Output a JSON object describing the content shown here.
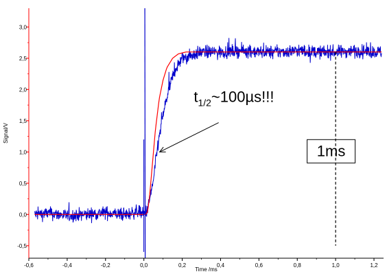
{
  "chart_data": {
    "type": "line",
    "title": "",
    "xlabel": "Time /ms",
    "ylabel": "Signal/V",
    "xlim": [
      -0.6,
      1.25
    ],
    "ylim": [
      -0.7,
      3.3
    ],
    "grid": false,
    "x_ticks": [
      -0.6,
      -0.4,
      -0.2,
      0.0,
      0.2,
      0.4,
      0.6,
      0.8,
      1.0,
      1.2
    ],
    "x_tick_labels": [
      "-0,6",
      "-0,4",
      "-0,2",
      "0,0",
      "0,2",
      "0,4",
      "0,6",
      "0,8",
      "1,0",
      "1,2"
    ],
    "y_ticks": [
      -0.5,
      0.0,
      0.5,
      1.0,
      1.5,
      2.0,
      2.5,
      3.0
    ],
    "y_tick_labels": [
      "-0,5",
      "0,0",
      "0,5",
      "1,0",
      "1,5",
      "2,0",
      "2,5",
      "3,0"
    ],
    "series": [
      {
        "color": "#0000cc",
        "style": "noisy",
        "x": [
          -0.57,
          -0.5,
          -0.4,
          -0.3,
          -0.2,
          -0.1,
          -0.03,
          0.0,
          0.02,
          0.05,
          0.07,
          0.1,
          0.13,
          0.16,
          0.2,
          0.25,
          0.3,
          0.4,
          0.5,
          0.6,
          0.7,
          0.8,
          0.9,
          1.0,
          1.1,
          1.2,
          1.24
        ],
        "y": [
          0.0,
          0.02,
          -0.02,
          0.0,
          0.03,
          -0.01,
          0.05,
          0.0,
          0.08,
          0.55,
          1.05,
          1.6,
          2.0,
          2.3,
          2.5,
          2.55,
          2.6,
          2.6,
          2.62,
          2.6,
          2.6,
          2.62,
          2.6,
          2.6,
          2.62,
          2.6,
          2.6
        ],
        "noise": 0.1
      },
      {
        "color": "#ff0000",
        "style": "fit",
        "x": [
          -0.57,
          -0.3,
          0.0,
          0.01,
          0.02,
          0.03,
          0.04,
          0.05,
          0.06,
          0.08,
          0.1,
          0.12,
          0.15,
          0.18,
          0.22,
          0.3,
          0.5,
          0.8,
          1.24
        ],
        "y": [
          0.0,
          0.0,
          0.0,
          0.0,
          0.05,
          0.3,
          0.65,
          1.0,
          1.35,
          1.85,
          2.15,
          2.35,
          2.5,
          2.57,
          2.6,
          2.6,
          2.6,
          2.6,
          2.6
        ]
      }
    ],
    "spike": {
      "x": 0.005,
      "y_high": 3.3,
      "y_low": -0.7
    },
    "annotations": [
      {
        "kind": "arrow-label",
        "text_main": "t",
        "text_sub": "1/2",
        "text_rest": "~100µs!!!",
        "text_x": 0.26,
        "text_y": 1.8,
        "arrow_to_x": 0.075,
        "arrow_to_y": 1.0
      },
      {
        "kind": "boxed-label",
        "text": "1ms",
        "x": 0.93,
        "y": 1.0
      },
      {
        "kind": "dashed-vline",
        "x": 1.0,
        "y_from": -0.5,
        "y_to": 2.6
      }
    ],
    "colors": {
      "axis_y": "#ff0000",
      "axis_x": "#000000"
    }
  }
}
